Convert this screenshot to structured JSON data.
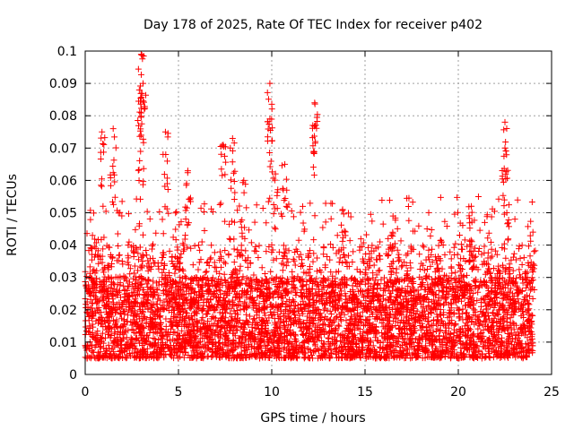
{
  "chart_data": {
    "type": "scatter",
    "title": "Day 178 of 2025, Rate Of TEC Index for receiver p402",
    "xlabel": "GPS time / hours",
    "ylabel": "ROTI / TECUs",
    "xlim": [
      0,
      25
    ],
    "ylim": [
      0,
      0.1
    ],
    "x_ticks": [
      0,
      5,
      10,
      15,
      20,
      25
    ],
    "x_tick_labels": [
      "0",
      "5",
      "10",
      "15",
      "20",
      "25"
    ],
    "y_ticks": [
      0,
      0.01,
      0.02,
      0.03,
      0.04,
      0.05,
      0.06,
      0.07,
      0.08,
      0.09,
      0.1
    ],
    "y_tick_labels": [
      "0",
      "0.01",
      "0.02",
      "0.03",
      "0.04",
      "0.05",
      "0.06",
      "0.07",
      "0.08",
      "0.09",
      "0.1"
    ],
    "grid": true,
    "marker": "plus",
    "color": "#ff0000",
    "x_range_of_data": [
      0,
      24
    ],
    "bulk_range": [
      0.005,
      0.03
    ],
    "spikes": [
      {
        "x": 0.9,
        "y": 0.075
      },
      {
        "x": 1.5,
        "y": 0.076
      },
      {
        "x": 2.9,
        "y": 0.088
      },
      {
        "x": 3.0,
        "y": 0.099
      },
      {
        "x": 3.1,
        "y": 0.09
      },
      {
        "x": 3.0,
        "y": 0.074
      },
      {
        "x": 4.3,
        "y": 0.075
      },
      {
        "x": 5.5,
        "y": 0.063
      },
      {
        "x": 7.4,
        "y": 0.071
      },
      {
        "x": 7.9,
        "y": 0.073
      },
      {
        "x": 8.5,
        "y": 0.06
      },
      {
        "x": 9.9,
        "y": 0.09
      },
      {
        "x": 9.9,
        "y": 0.079
      },
      {
        "x": 10.2,
        "y": 0.062
      },
      {
        "x": 10.7,
        "y": 0.065
      },
      {
        "x": 12.3,
        "y": 0.084
      },
      {
        "x": 12.2,
        "y": 0.077
      },
      {
        "x": 13.8,
        "y": 0.051
      },
      {
        "x": 16.5,
        "y": 0.049
      },
      {
        "x": 20.7,
        "y": 0.052
      },
      {
        "x": 22.5,
        "y": 0.078
      },
      {
        "x": 22.5,
        "y": 0.07
      },
      {
        "x": 22.6,
        "y": 0.05
      },
      {
        "x": 24.0,
        "y": 0.044
      }
    ]
  }
}
